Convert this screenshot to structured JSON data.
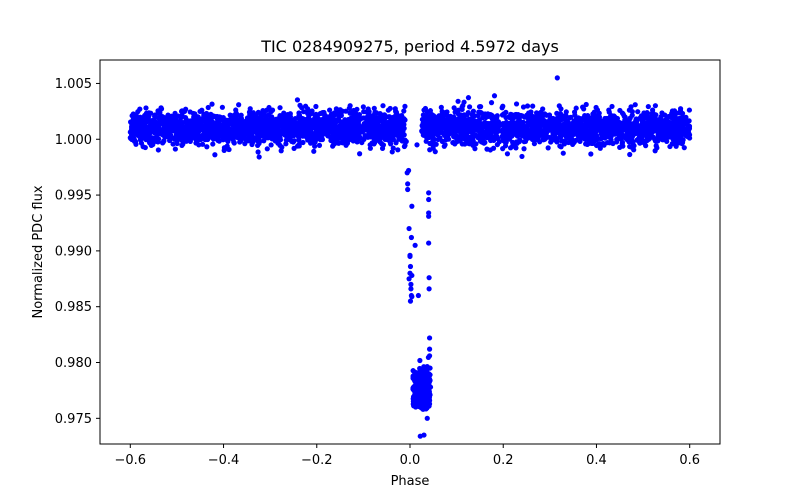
{
  "chart_data": {
    "type": "scatter",
    "title": "TIC 0284909275, period 4.5972 days",
    "xlabel": "Phase",
    "ylabel": "Normalized PDC flux",
    "xlim": [
      -0.665,
      0.665
    ],
    "ylim": [
      0.9727,
      1.0071
    ],
    "xticks": [
      -0.6,
      -0.4,
      -0.2,
      0.0,
      0.2,
      0.4,
      0.6
    ],
    "xtick_labels": [
      "−0.6",
      "−0.4",
      "−0.2",
      "0.0",
      "0.2",
      "0.4",
      "0.6"
    ],
    "yticks": [
      0.975,
      0.98,
      0.985,
      0.99,
      0.995,
      1.0,
      1.005
    ],
    "ytick_labels": [
      "0.975",
      "0.980",
      "0.985",
      "0.990",
      "0.995",
      "1.000",
      "1.005"
    ],
    "grid": false,
    "marker_color": "#0000ff",
    "series": [
      {
        "name": "flux",
        "baseline": {
          "segments": [
            [
              -0.6,
              -0.01
            ],
            [
              0.025,
              0.6
            ]
          ],
          "center": 1.001,
          "scatter_sd": 0.0009,
          "point_count": 3600
        },
        "x": [
          -0.005,
          -0.003,
          -0.002,
          0.0,
          0.002,
          -0.002,
          0.0,
          0.001,
          0.002,
          0.004,
          -0.006,
          0.003,
          0.004,
          0.003,
          0.004,
          0.0,
          0.04,
          0.04,
          0.04,
          0.04,
          0.04,
          0.041,
          0.041,
          0.042,
          0.042,
          0.042,
          0.043,
          0.043,
          0.043,
          0.044,
          0.043,
          0.042,
          0.041,
          0.011,
          -0.005,
          0.001,
          0.018,
          0.03,
          0.022,
          0.037,
          -0.008,
          0.015,
          0.316
        ],
        "y": [
          0.996,
          0.9972,
          0.992,
          0.9896,
          0.9866,
          0.9875,
          0.988,
          0.9886,
          0.987,
          0.9859,
          0.997,
          0.9912,
          0.994,
          0.986,
          0.9878,
          0.9895,
          0.9952,
          0.9946,
          0.9934,
          0.9931,
          0.9907,
          0.9876,
          0.9866,
          0.9822,
          0.9812,
          0.9806,
          0.9795,
          0.9789,
          0.9784,
          0.9778,
          0.9771,
          0.9766,
          0.9761,
          0.9905,
          0.9955,
          0.9855,
          0.986,
          0.9735,
          0.9734,
          0.975,
          0.9998,
          0.9995,
          1.0055
        ]
      }
    ]
  }
}
